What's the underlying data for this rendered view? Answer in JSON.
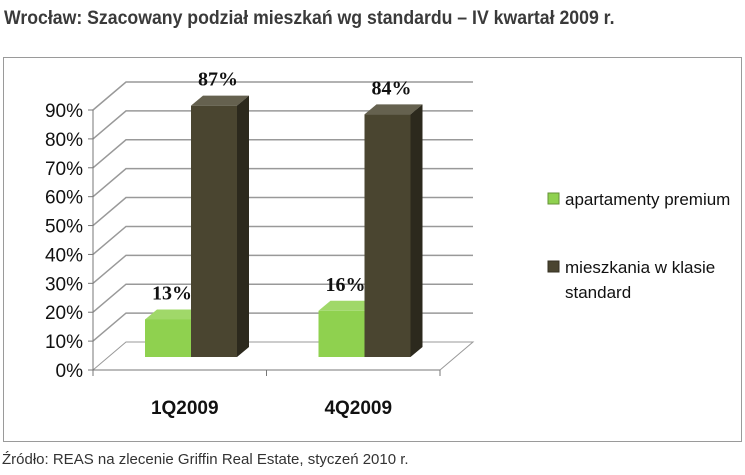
{
  "title": "Wrocław: Szacowany podział mieszkań wg standardu – IV kwartał 2009 r.",
  "source": "Źródło: REAS na zlecenie Griffin Real Estate, styczeń 2010 r.",
  "chart_data": {
    "type": "bar",
    "style": "3d-clustered-column",
    "categories": [
      "1Q2009",
      "4Q2009"
    ],
    "series": [
      {
        "name": "apartamenty premium",
        "values": [
          13,
          16
        ],
        "color": "#8fd14f",
        "labels": [
          "13%",
          "16%"
        ]
      },
      {
        "name": "mieszkania w klasie standard",
        "values": [
          87,
          84
        ],
        "color": "#4a4530",
        "labels": [
          "87%",
          "84%"
        ]
      }
    ],
    "ylim": [
      0,
      90
    ],
    "yticks": [
      "0%",
      "10%",
      "20%",
      "30%",
      "40%",
      "50%",
      "60%",
      "70%",
      "80%",
      "90%"
    ],
    "grid": true,
    "legend": "right",
    "legend_lines": [
      [
        "apartamenty premium"
      ],
      [
        "mieszkania w klasie",
        "standard"
      ]
    ]
  }
}
